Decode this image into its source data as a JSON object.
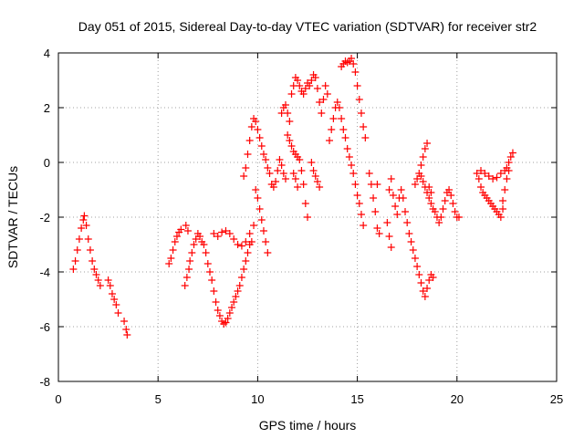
{
  "chart_data": {
    "type": "scatter",
    "title": "Day 051 of 2015, Sidereal Day-to-day VTEC variation (SDTVAR) for receiver str2",
    "xlabel": "GPS time / hours",
    "ylabel": "SDTVAR / TECUs",
    "xlim": [
      0,
      25
    ],
    "ylim": [
      -8,
      4
    ],
    "x_ticks": [
      0,
      5,
      10,
      15,
      20,
      25
    ],
    "y_ticks": [
      -8,
      -6,
      -4,
      -2,
      0,
      2,
      4
    ],
    "x_tick_labels": [
      "0",
      "5",
      "10",
      "15",
      "20",
      "25"
    ],
    "y_tick_labels": [
      "-8",
      "-6",
      "-4",
      "-2",
      "0",
      "2",
      "4"
    ],
    "grid": true,
    "marker": "+",
    "series": [
      {
        "name": "SDTVAR",
        "color": "#ff0000",
        "points": [
          [
            0.75,
            -3.9
          ],
          [
            0.85,
            -3.6
          ],
          [
            0.95,
            -3.2
          ],
          [
            1.05,
            -2.8
          ],
          [
            1.15,
            -2.4
          ],
          [
            1.25,
            -2.1
          ],
          [
            1.3,
            -1.95
          ],
          [
            1.4,
            -2.3
          ],
          [
            1.5,
            -2.8
          ],
          [
            1.6,
            -3.2
          ],
          [
            1.7,
            -3.6
          ],
          [
            1.8,
            -3.9
          ],
          [
            1.9,
            -4.1
          ],
          [
            2.0,
            -4.3
          ],
          [
            2.1,
            -4.5
          ],
          [
            2.5,
            -4.3
          ],
          [
            2.6,
            -4.5
          ],
          [
            2.7,
            -4.8
          ],
          [
            2.8,
            -5.0
          ],
          [
            2.9,
            -5.2
          ],
          [
            3.0,
            -5.5
          ],
          [
            3.3,
            -5.8
          ],
          [
            3.4,
            -6.1
          ],
          [
            3.45,
            -6.3
          ],
          [
            5.55,
            -3.7
          ],
          [
            5.65,
            -3.5
          ],
          [
            5.75,
            -3.2
          ],
          [
            5.85,
            -2.9
          ],
          [
            5.95,
            -2.7
          ],
          [
            6.05,
            -2.55
          ],
          [
            6.15,
            -2.45
          ],
          [
            6.35,
            -4.5
          ],
          [
            6.45,
            -4.2
          ],
          [
            6.55,
            -3.9
          ],
          [
            6.6,
            -3.6
          ],
          [
            6.4,
            -2.3
          ],
          [
            6.5,
            -2.5
          ],
          [
            6.7,
            -3.3
          ],
          [
            6.8,
            -3.0
          ],
          [
            6.9,
            -2.8
          ],
          [
            7.0,
            -2.6
          ],
          [
            7.1,
            -2.7
          ],
          [
            7.2,
            -2.9
          ],
          [
            7.3,
            -3.0
          ],
          [
            7.4,
            -3.3
          ],
          [
            7.5,
            -3.7
          ],
          [
            7.6,
            -4.0
          ],
          [
            7.7,
            -4.3
          ],
          [
            7.8,
            -4.7
          ],
          [
            7.9,
            -5.1
          ],
          [
            8.0,
            -5.4
          ],
          [
            8.1,
            -5.6
          ],
          [
            8.2,
            -5.8
          ],
          [
            8.3,
            -5.9
          ],
          [
            8.4,
            -5.85
          ],
          [
            8.5,
            -5.7
          ],
          [
            8.6,
            -5.5
          ],
          [
            8.7,
            -5.3
          ],
          [
            8.8,
            -5.1
          ],
          [
            8.9,
            -4.9
          ],
          [
            9.0,
            -4.7
          ],
          [
            9.1,
            -4.5
          ],
          [
            9.2,
            -4.2
          ],
          [
            9.3,
            -3.9
          ],
          [
            9.4,
            -3.6
          ],
          [
            9.5,
            -3.3
          ],
          [
            9.6,
            -3.0
          ],
          [
            9.7,
            -2.9
          ],
          [
            7.8,
            -2.6
          ],
          [
            8.0,
            -2.7
          ],
          [
            8.2,
            -2.55
          ],
          [
            8.4,
            -2.5
          ],
          [
            8.6,
            -2.6
          ],
          [
            8.8,
            -2.8
          ],
          [
            9.0,
            -3.0
          ],
          [
            9.2,
            -3.05
          ],
          [
            9.4,
            -2.9
          ],
          [
            9.6,
            -2.6
          ],
          [
            9.8,
            -2.3
          ],
          [
            9.3,
            -0.5
          ],
          [
            9.4,
            -0.2
          ],
          [
            9.5,
            0.3
          ],
          [
            9.6,
            0.8
          ],
          [
            9.7,
            1.3
          ],
          [
            9.8,
            1.6
          ],
          [
            9.9,
            1.5
          ],
          [
            10.0,
            1.2
          ],
          [
            10.1,
            0.9
          ],
          [
            10.2,
            0.6
          ],
          [
            10.3,
            0.3
          ],
          [
            10.4,
            0.1
          ],
          [
            10.5,
            -0.2
          ],
          [
            10.6,
            -0.4
          ],
          [
            9.9,
            -1.0
          ],
          [
            10.0,
            -1.3
          ],
          [
            10.1,
            -1.7
          ],
          [
            10.2,
            -2.1
          ],
          [
            10.3,
            -2.5
          ],
          [
            10.4,
            -2.9
          ],
          [
            10.5,
            -3.3
          ],
          [
            10.7,
            -0.8
          ],
          [
            10.8,
            -0.9
          ],
          [
            10.9,
            -0.7
          ],
          [
            11.0,
            -0.3
          ],
          [
            11.1,
            0.1
          ],
          [
            11.2,
            -0.1
          ],
          [
            11.3,
            -0.4
          ],
          [
            11.4,
            -0.6
          ],
          [
            11.2,
            1.8
          ],
          [
            11.3,
            2.0
          ],
          [
            11.4,
            2.1
          ],
          [
            11.5,
            1.8
          ],
          [
            11.6,
            1.5
          ],
          [
            11.7,
            2.5
          ],
          [
            11.8,
            2.8
          ],
          [
            11.9,
            3.1
          ],
          [
            12.0,
            3.0
          ],
          [
            12.1,
            2.8
          ],
          [
            12.2,
            2.6
          ],
          [
            12.3,
            2.5
          ],
          [
            12.4,
            2.7
          ],
          [
            12.5,
            2.9
          ],
          [
            12.6,
            2.8
          ],
          [
            12.7,
            3.0
          ],
          [
            12.8,
            3.2
          ],
          [
            12.9,
            3.1
          ],
          [
            13.0,
            2.7
          ],
          [
            13.1,
            2.2
          ],
          [
            13.2,
            1.8
          ],
          [
            13.3,
            2.3
          ],
          [
            13.4,
            2.8
          ],
          [
            13.5,
            2.5
          ],
          [
            11.5,
            1.0
          ],
          [
            11.6,
            0.8
          ],
          [
            11.7,
            0.6
          ],
          [
            11.8,
            0.4
          ],
          [
            11.9,
            0.3
          ],
          [
            12.0,
            0.2
          ],
          [
            12.1,
            0.1
          ],
          [
            12.2,
            -0.3
          ],
          [
            12.3,
            -0.8
          ],
          [
            12.4,
            -1.5
          ],
          [
            12.5,
            -2.0
          ],
          [
            11.8,
            -0.4
          ],
          [
            11.9,
            -0.6
          ],
          [
            12.0,
            -0.9
          ],
          [
            12.7,
            0.0
          ],
          [
            12.8,
            -0.3
          ],
          [
            12.9,
            -0.5
          ],
          [
            13.0,
            -0.7
          ],
          [
            13.1,
            -0.9
          ],
          [
            13.6,
            0.8
          ],
          [
            13.7,
            1.2
          ],
          [
            13.8,
            1.6
          ],
          [
            13.9,
            2.0
          ],
          [
            14.0,
            2.2
          ],
          [
            14.1,
            2.0
          ],
          [
            14.2,
            1.6
          ],
          [
            14.3,
            1.2
          ],
          [
            14.4,
            0.9
          ],
          [
            14.5,
            0.5
          ],
          [
            14.6,
            0.2
          ],
          [
            14.7,
            -0.1
          ],
          [
            14.8,
            -0.4
          ],
          [
            14.9,
            -0.8
          ],
          [
            15.0,
            -1.2
          ],
          [
            15.1,
            -1.5
          ],
          [
            15.2,
            -1.9
          ],
          [
            15.3,
            -2.3
          ],
          [
            14.2,
            3.5
          ],
          [
            14.3,
            3.6
          ],
          [
            14.4,
            3.7
          ],
          [
            14.5,
            3.65
          ],
          [
            14.6,
            3.7
          ],
          [
            14.7,
            3.8
          ],
          [
            14.8,
            3.6
          ],
          [
            14.9,
            3.3
          ],
          [
            15.0,
            2.8
          ],
          [
            15.1,
            2.3
          ],
          [
            15.2,
            1.8
          ],
          [
            15.3,
            1.3
          ],
          [
            15.4,
            0.9
          ],
          [
            15.6,
            -0.4
          ],
          [
            15.7,
            -0.8
          ],
          [
            15.8,
            -1.3
          ],
          [
            15.9,
            -1.8
          ],
          [
            16.0,
            -2.4
          ],
          [
            16.1,
            -2.6
          ],
          [
            16.0,
            -0.8
          ],
          [
            16.5,
            -2.2
          ],
          [
            16.6,
            -2.7
          ],
          [
            16.7,
            -3.1
          ],
          [
            16.6,
            -1.0
          ],
          [
            16.7,
            -0.6
          ],
          [
            16.8,
            -1.2
          ],
          [
            16.9,
            -1.6
          ],
          [
            17.0,
            -1.9
          ],
          [
            17.1,
            -1.3
          ],
          [
            17.2,
            -1.0
          ],
          [
            17.3,
            -1.3
          ],
          [
            17.4,
            -1.8
          ],
          [
            17.5,
            -2.2
          ],
          [
            17.6,
            -2.6
          ],
          [
            17.7,
            -2.9
          ],
          [
            17.8,
            -3.2
          ],
          [
            17.9,
            -3.5
          ],
          [
            18.0,
            -3.8
          ],
          [
            18.1,
            -4.1
          ],
          [
            18.2,
            -4.4
          ],
          [
            18.3,
            -4.7
          ],
          [
            18.4,
            -4.9
          ],
          [
            18.5,
            -4.6
          ],
          [
            18.6,
            -4.3
          ],
          [
            18.7,
            -4.1
          ],
          [
            18.8,
            -4.2
          ],
          [
            17.9,
            -0.8
          ],
          [
            18.0,
            -0.6
          ],
          [
            18.1,
            -0.4
          ],
          [
            18.2,
            -0.5
          ],
          [
            18.3,
            -0.7
          ],
          [
            18.4,
            -0.9
          ],
          [
            18.5,
            -1.1
          ],
          [
            18.6,
            -1.3
          ],
          [
            18.7,
            -1.5
          ],
          [
            18.8,
            -1.7
          ],
          [
            18.9,
            -1.8
          ],
          [
            19.0,
            -2.0
          ],
          [
            19.1,
            -2.2
          ],
          [
            19.2,
            -2.0
          ],
          [
            19.3,
            -1.7
          ],
          [
            19.4,
            -1.4
          ],
          [
            19.5,
            -1.1
          ],
          [
            19.6,
            -1.0
          ],
          [
            19.7,
            -1.2
          ],
          [
            19.8,
            -1.5
          ],
          [
            19.9,
            -1.8
          ],
          [
            20.0,
            -2.0
          ],
          [
            20.1,
            -2.0
          ],
          [
            18.3,
            0.2
          ],
          [
            18.4,
            0.5
          ],
          [
            18.5,
            0.7
          ],
          [
            18.2,
            -0.1
          ],
          [
            18.6,
            -0.9
          ],
          [
            18.7,
            -1.1
          ],
          [
            21.0,
            -0.4
          ],
          [
            21.1,
            -0.6
          ],
          [
            21.2,
            -0.9
          ],
          [
            21.3,
            -1.1
          ],
          [
            21.4,
            -1.2
          ],
          [
            21.5,
            -1.3
          ],
          [
            21.6,
            -1.4
          ],
          [
            21.7,
            -1.5
          ],
          [
            21.8,
            -1.6
          ],
          [
            21.9,
            -1.7
          ],
          [
            22.0,
            -1.8
          ],
          [
            22.1,
            -1.9
          ],
          [
            22.2,
            -2.0
          ],
          [
            22.3,
            -1.7
          ],
          [
            21.2,
            -0.3
          ],
          [
            21.4,
            -0.4
          ],
          [
            21.6,
            -0.5
          ],
          [
            21.8,
            -0.6
          ],
          [
            22.0,
            -0.55
          ],
          [
            22.2,
            -0.4
          ],
          [
            22.4,
            -0.3
          ],
          [
            22.5,
            -0.2
          ],
          [
            22.6,
            0.0
          ],
          [
            22.7,
            0.2
          ],
          [
            22.8,
            0.35
          ],
          [
            22.3,
            -1.4
          ],
          [
            22.4,
            -1.0
          ],
          [
            22.5,
            -0.6
          ],
          [
            22.6,
            -0.3
          ]
        ]
      }
    ]
  }
}
